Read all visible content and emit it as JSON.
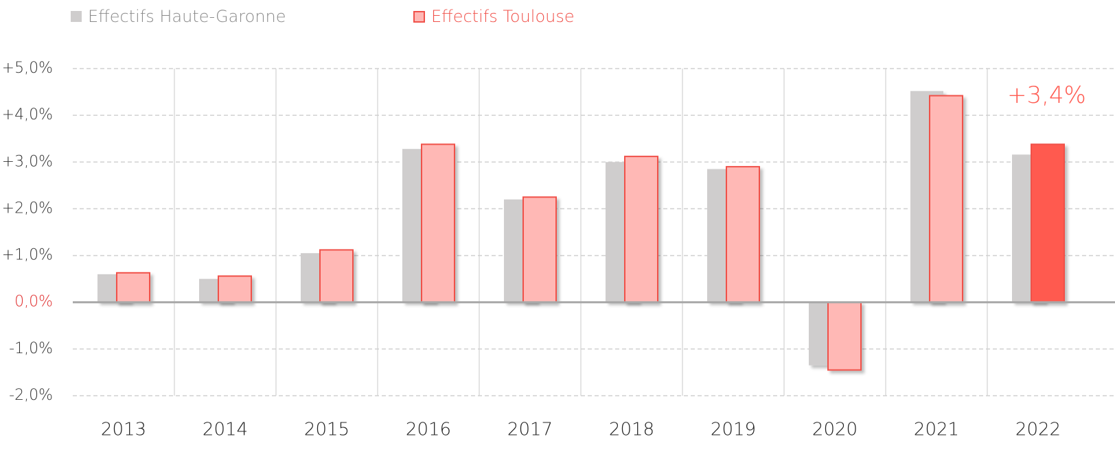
{
  "chart_data": {
    "type": "bar",
    "categories": [
      "2013",
      "2014",
      "2015",
      "2016",
      "2017",
      "2018",
      "2019",
      "2020",
      "2021",
      "2022"
    ],
    "series": [
      {
        "name": "Effectifs Haute-Garonne",
        "color": "#cfcdcd",
        "values": [
          0.6,
          0.5,
          1.05,
          3.28,
          2.2,
          3.0,
          2.85,
          -1.35,
          4.52,
          3.16
        ]
      },
      {
        "name": "Effectifs Toulouse",
        "color": "#ffb8b5",
        "edge_color": "#f0514a",
        "highlight_color": "#ff5a50",
        "values": [
          0.63,
          0.56,
          1.12,
          3.38,
          2.25,
          3.12,
          2.9,
          -1.45,
          4.42,
          3.38
        ],
        "value_labels": [
          null,
          null,
          null,
          null,
          null,
          null,
          null,
          null,
          null,
          "+3,4%"
        ]
      }
    ],
    "ylim": [
      -2,
      5
    ],
    "yticks": [
      {
        "value": -2,
        "label": "-2,0%"
      },
      {
        "value": -1,
        "label": "-1,0%"
      },
      {
        "value": 0,
        "label": "0,0%"
      },
      {
        "value": 1,
        "label": "+1,0%"
      },
      {
        "value": 2,
        "label": "+2,0%"
      },
      {
        "value": 3,
        "label": "+3,0%"
      },
      {
        "value": 4,
        "label": "+4,0%"
      },
      {
        "value": 5,
        "label": "+5,0%"
      }
    ],
    "grid": true,
    "legend": "top"
  }
}
